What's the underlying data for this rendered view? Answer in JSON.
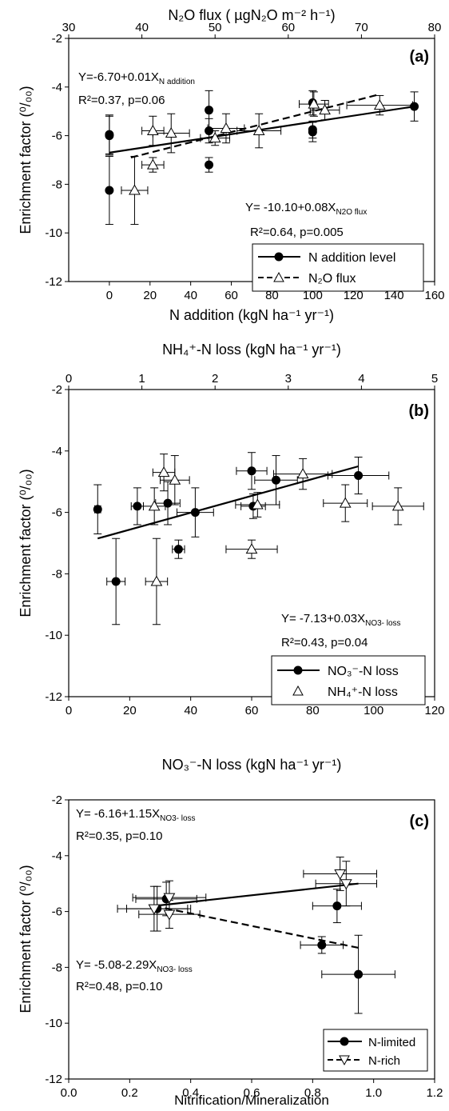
{
  "panels": [
    {
      "id": "a",
      "panel_label": "(a)",
      "bottom_xlabel": "N addition (kgN ha⁻¹ yr⁻¹)",
      "top_xlabel": "N₂O flux ( µgN₂O m⁻² h⁻¹)",
      "ylabel": "Enrichment factor (⁰/₀₀)",
      "annotations": [
        {
          "main": "Y=-6.70+0.01X",
          "sub": "N addition"
        },
        {
          "main": "R²=0.37, p=0.06",
          "sub": ""
        },
        {
          "main": "Y= -10.10+0.08X",
          "sub": "N2O flux"
        },
        {
          "main": "R²=0.64, p=0.005",
          "sub": ""
        }
      ],
      "legend": [
        "N addition level",
        "N₂O flux"
      ]
    },
    {
      "id": "b",
      "panel_label": "(b)",
      "bottom_xlabel": "",
      "top_xlabel": "NH₄⁺-N loss (kgN ha⁻¹ yr⁻¹)",
      "ylabel": "Enrichment factor (⁰/₀₀)",
      "annotations": [
        {
          "main": "Y= -7.13+0.03X",
          "sub": "NO3- loss"
        },
        {
          "main": "R²=0.43, p=0.04",
          "sub": ""
        }
      ],
      "legend": [
        "NO₃⁻-N loss",
        "NH₄⁺-N loss"
      ]
    },
    {
      "id": "c",
      "panel_label": "(c)",
      "bottom_xlabel": "Nitrification/Mineralization",
      "top_xlabel": "NO₃⁻-N loss (kgN ha⁻¹ yr⁻¹)",
      "ylabel": "Enrichment factor (⁰/₀₀)",
      "annotations": [
        {
          "main": "Y= -6.16+1.15X",
          "sub": "NO3- loss"
        },
        {
          "main": "R²=0.35, p=0.10",
          "sub": ""
        },
        {
          "main": "Y= -5.08-2.29X",
          "sub": "NO3- loss"
        },
        {
          "main": "R²=0.48, p=0.10",
          "sub": ""
        }
      ],
      "legend": [
        "N-limited",
        "N-rich"
      ]
    }
  ],
  "chart_data": [
    {
      "type": "scatter",
      "panel": "a",
      "ylim": [
        -12,
        -2
      ],
      "yticks": [
        -12,
        -10,
        -8,
        -6,
        -4,
        -2
      ],
      "xlim_bottom": [
        -20,
        160
      ],
      "xticks_bottom": [
        0,
        20,
        40,
        60,
        80,
        100,
        120,
        140,
        160
      ],
      "xlim_top": [
        30,
        80
      ],
      "xticks_top": [
        30,
        40,
        50,
        60,
        70,
        80
      ],
      "series": [
        {
          "name": "N addition level",
          "axis": "bottom",
          "marker": "circle",
          "points": [
            {
              "x": 0,
              "y": -5.95,
              "yerr": 0.8
            },
            {
              "x": 0,
              "y": -6.0,
              "yerr": 0.8
            },
            {
              "x": 0,
              "y": -8.25,
              "yerr": 1.4
            },
            {
              "x": 49,
              "y": -4.95,
              "yerr": 0.8
            },
            {
              "x": 49,
              "y": -5.8,
              "yerr": 0.5
            },
            {
              "x": 49,
              "y": -7.2,
              "yerr": 0.3
            },
            {
              "x": 100,
              "y": -4.65,
              "yerr": 0.5
            },
            {
              "x": 100,
              "y": -5.75,
              "yerr": 0.35
            },
            {
              "x": 100,
              "y": -5.85,
              "yerr": 0.4
            },
            {
              "x": 150,
              "y": -4.8,
              "yerr": 0.6
            }
          ],
          "fit": {
            "x": [
              0,
              150
            ],
            "y": [
              -6.7,
              -4.8
            ]
          }
        },
        {
          "name": "N₂O flux",
          "axis": "top",
          "marker": "triangle-up",
          "points": [
            {
              "x": 39,
              "y": -8.25,
              "xerr": 1.8,
              "yerr": 1.4
            },
            {
              "x": 41.5,
              "y": -7.2,
              "xerr": 1.5,
              "yerr": 0.3
            },
            {
              "x": 41.5,
              "y": -5.8,
              "xerr": 1.5,
              "yerr": 0.6
            },
            {
              "x": 44,
              "y": -5.9,
              "xerr": 2.5,
              "yerr": 0.8
            },
            {
              "x": 50,
              "y": -6.1,
              "xerr": 2.0,
              "yerr": 0.3
            },
            {
              "x": 51.5,
              "y": -5.7,
              "xerr": 2.5,
              "yerr": 0.6
            },
            {
              "x": 56,
              "y": -5.8,
              "xerr": 3.0,
              "yerr": 0.7
            },
            {
              "x": 63.5,
              "y": -4.7,
              "xerr": 2.0,
              "yerr": 0.5
            },
            {
              "x": 65,
              "y": -4.95,
              "xerr": 2.0,
              "yerr": 0.4
            },
            {
              "x": 72.5,
              "y": -4.75,
              "xerr": 4.5,
              "yerr": 0.4
            }
          ],
          "fit": {
            "x": [
              38.5,
              72.5
            ],
            "y": [
              -6.9,
              -4.3
            ]
          }
        }
      ]
    },
    {
      "type": "scatter",
      "panel": "b",
      "ylim": [
        -12,
        -2
      ],
      "yticks": [
        -12,
        -10,
        -8,
        -6,
        -4,
        -2
      ],
      "xlim_bottom": [
        0,
        120
      ],
      "xticks_bottom": [
        0,
        20,
        40,
        60,
        80,
        100,
        120
      ],
      "xlim_top": [
        0,
        5
      ],
      "xticks_top": [
        0,
        1,
        2,
        3,
        4,
        5
      ],
      "series": [
        {
          "name": "NO₃⁻-N loss",
          "axis": "bottom",
          "marker": "circle",
          "points": [
            {
              "x": 9.5,
              "y": -5.9,
              "xerr": 1.0,
              "yerr": 0.8
            },
            {
              "x": 15.5,
              "y": -8.25,
              "xerr": 3.0,
              "yerr": 1.4
            },
            {
              "x": 22.5,
              "y": -5.8,
              "xerr": 2.0,
              "yerr": 0.6
            },
            {
              "x": 32.5,
              "y": -5.7,
              "xerr": 4.0,
              "yerr": 0.7
            },
            {
              "x": 36,
              "y": -7.2,
              "xerr": 2.0,
              "yerr": 0.3
            },
            {
              "x": 41.5,
              "y": -6.0,
              "xerr": 6.0,
              "yerr": 0.8
            },
            {
              "x": 60,
              "y": -4.65,
              "xerr": 5.0,
              "yerr": 0.6
            },
            {
              "x": 60.5,
              "y": -5.8,
              "xerr": 4.0,
              "yerr": 0.4
            },
            {
              "x": 68,
              "y": -4.95,
              "xerr": 7.0,
              "yerr": 0.8
            },
            {
              "x": 95,
              "y": -4.8,
              "xerr": 10.0,
              "yerr": 0.6
            }
          ],
          "fit": {
            "x": [
              9.5,
              95
            ],
            "y": [
              -6.85,
              -4.5
            ]
          }
        },
        {
          "name": "NH₄⁺-N loss",
          "axis": "top",
          "marker": "triangle-up",
          "points": [
            {
              "x": 1.3,
              "y": -4.7,
              "xerr": 0.15,
              "yerr": 0.6
            },
            {
              "x": 1.17,
              "y": -5.8,
              "xerr": 0.15,
              "yerr": 0.6
            },
            {
              "x": 1.2,
              "y": -8.25,
              "xerr": 0.15,
              "yerr": 1.4
            },
            {
              "x": 1.45,
              "y": -4.95,
              "xerr": 0.2,
              "yerr": 0.8
            },
            {
              "x": 2.5,
              "y": -7.2,
              "xerr": 0.35,
              "yerr": 0.3
            },
            {
              "x": 2.58,
              "y": -5.75,
              "xerr": 0.3,
              "yerr": 0.4
            },
            {
              "x": 3.2,
              "y": -4.75,
              "xerr": 0.4,
              "yerr": 0.5
            },
            {
              "x": 3.78,
              "y": -5.7,
              "xerr": 0.3,
              "yerr": 0.6
            },
            {
              "x": 4.5,
              "y": -5.8,
              "xerr": 0.35,
              "yerr": 0.6
            }
          ]
        }
      ]
    },
    {
      "type": "scatter",
      "panel": "c",
      "ylim": [
        -12,
        -2
      ],
      "yticks": [
        -12,
        -10,
        -8,
        -6,
        -4,
        -2
      ],
      "xlim_bottom": [
        0,
        1.2
      ],
      "xticks_bottom": [
        0.0,
        0.2,
        0.4,
        0.6,
        0.8,
        1.0,
        1.2
      ],
      "xtick_labels_bottom": [
        "0.0",
        "0.2",
        "0.4",
        "0.6",
        "0.8",
        "1.0",
        "1.2"
      ],
      "series": [
        {
          "name": "N-limited",
          "marker": "circle",
          "points": [
            {
              "x": 0.29,
              "y": -5.9,
              "xerr": 0.1,
              "yerr": 0.8
            },
            {
              "x": 0.32,
              "y": -5.55,
              "xerr": 0.1,
              "yerr": 0.6
            },
            {
              "x": 0.83,
              "y": -7.2,
              "xerr": 0.07,
              "yerr": 0.3
            },
            {
              "x": 0.88,
              "y": -5.8,
              "xerr": 0.08,
              "yerr": 0.6
            },
            {
              "x": 0.95,
              "y": -8.25,
              "xerr": 0.12,
              "yerr": 1.4
            }
          ],
          "fit": {
            "x": [
              0.28,
              0.95
            ],
            "y": [
              -5.8,
              -5.0
            ]
          }
        },
        {
          "name": "N-rich",
          "marker": "triangle-down",
          "points": [
            {
              "x": 0.28,
              "y": -5.9,
              "xerr": 0.12,
              "yerr": 0.8
            },
            {
              "x": 0.33,
              "y": -6.1,
              "xerr": 0.1,
              "yerr": 0.5
            },
            {
              "x": 0.33,
              "y": -5.5,
              "xerr": 0.12,
              "yerr": 0.6
            },
            {
              "x": 0.89,
              "y": -4.65,
              "xerr": 0.12,
              "yerr": 0.6
            },
            {
              "x": 0.91,
              "y": -5.0,
              "xerr": 0.1,
              "yerr": 0.8
            }
          ],
          "fit": {
            "x": [
              0.28,
              0.95
            ],
            "y": [
              -5.8,
              -7.3
            ]
          }
        }
      ]
    }
  ]
}
